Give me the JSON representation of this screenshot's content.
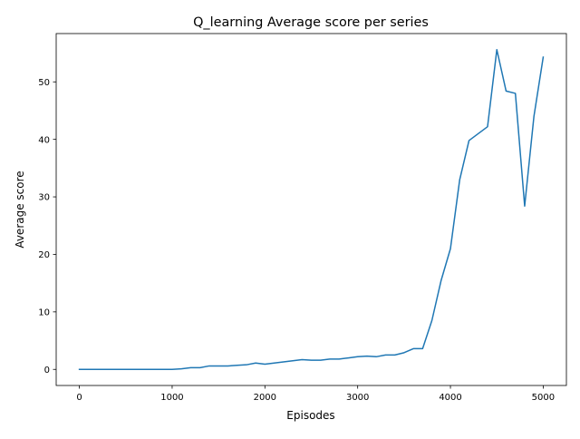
{
  "chart_data": {
    "type": "line",
    "title": "Q_learning Average score per series",
    "xlabel": "Episodes",
    "ylabel": "Average score",
    "xlim": [
      -250,
      5250
    ],
    "ylim": [
      -2.8,
      58.4
    ],
    "xticks": [
      0,
      1000,
      2000,
      3000,
      4000,
      5000
    ],
    "yticks": [
      0,
      10,
      20,
      30,
      40,
      50
    ],
    "grid": false,
    "legend": "none",
    "line_color": "#1f77b4",
    "series": [
      {
        "x": [
          0,
          100,
          200,
          300,
          400,
          500,
          600,
          700,
          800,
          900,
          1000,
          1100,
          1200,
          1300,
          1400,
          1500,
          1600,
          1700,
          1800,
          1900,
          2000,
          2100,
          2200,
          2300,
          2400,
          2500,
          2600,
          2700,
          2800,
          2900,
          3000,
          3100,
          3200,
          3300,
          3400,
          3500,
          3600,
          3700,
          3800,
          3900,
          4000,
          4100,
          4200,
          4300,
          4400,
          4500,
          4600,
          4700,
          4800,
          4900,
          5000
        ],
        "y": [
          0,
          0,
          0,
          0,
          0,
          0,
          0,
          0,
          0,
          0,
          0,
          0.1,
          0.3,
          0.3,
          0.6,
          0.6,
          0.6,
          0.7,
          0.8,
          1.1,
          0.9,
          1.1,
          1.3,
          1.5,
          1.7,
          1.6,
          1.6,
          1.8,
          1.8,
          2.0,
          2.2,
          2.3,
          2.2,
          2.5,
          2.5,
          2.9,
          3.6,
          3.6,
          8.5,
          15.5,
          21.0,
          33.0,
          39.8,
          41.0,
          42.2,
          55.6,
          48.4,
          48.0,
          28.4,
          44.0,
          54.3
        ]
      }
    ]
  }
}
